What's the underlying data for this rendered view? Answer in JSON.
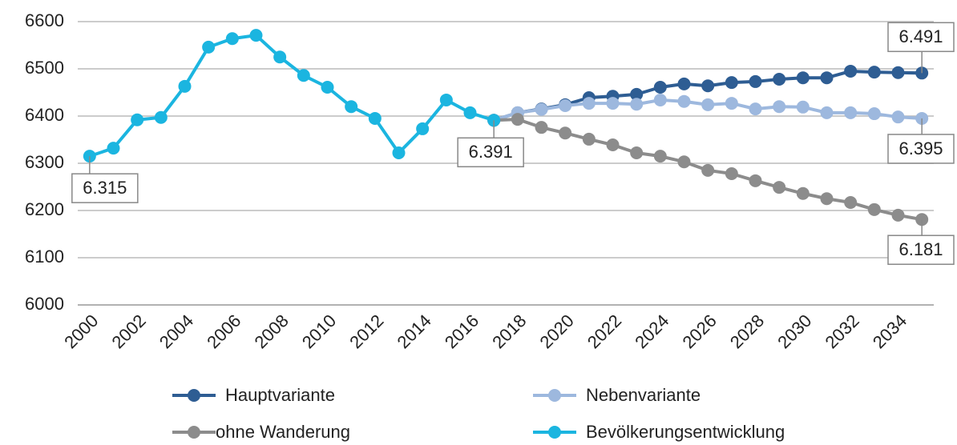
{
  "chart_data": {
    "type": "line",
    "categories": [
      "2000",
      null,
      "2002",
      null,
      "2004",
      null,
      "2006",
      null,
      "2008",
      null,
      "2010",
      null,
      "2012",
      null,
      "2014",
      null,
      "2016",
      null,
      "2018",
      null,
      "2020",
      null,
      "2022",
      null,
      "2024",
      null,
      "2026",
      null,
      "2028",
      null,
      "2030",
      null,
      "2032",
      null,
      "2034",
      null
    ],
    "ylim": [
      6000,
      6600
    ],
    "yticks": [
      6000,
      6100,
      6200,
      6300,
      6400,
      6500,
      6600
    ],
    "grid": true,
    "series": [
      {
        "name": "Hauptvariante",
        "color": "#2e5d93",
        "values": [
          null,
          null,
          null,
          null,
          null,
          null,
          null,
          null,
          null,
          null,
          null,
          null,
          null,
          null,
          null,
          null,
          null,
          6391,
          6407,
          6415,
          6424,
          6439,
          6442,
          6446,
          6461,
          6468,
          6464,
          6471,
          6473,
          6478,
          6481,
          6481,
          6495,
          6493,
          6492,
          6491
        ],
        "value_labels": [
          null,
          null,
          null,
          null,
          null,
          null,
          null,
          null,
          null,
          null,
          null,
          null,
          null,
          null,
          null,
          null,
          null,
          null,
          null,
          null,
          null,
          null,
          null,
          null,
          null,
          null,
          null,
          null,
          null,
          null,
          null,
          null,
          null,
          null,
          null,
          "6.491"
        ]
      },
      {
        "name": "Nebenvariante",
        "color": "#9db8de",
        "values": [
          null,
          null,
          null,
          null,
          null,
          null,
          null,
          null,
          null,
          null,
          null,
          null,
          null,
          null,
          null,
          null,
          null,
          6391,
          6407,
          6414,
          6422,
          6427,
          6427,
          6425,
          6434,
          6431,
          6424,
          6427,
          6415,
          6420,
          6419,
          6407,
          6407,
          6405,
          6398,
          6395
        ],
        "value_labels": [
          null,
          null,
          null,
          null,
          null,
          null,
          null,
          null,
          null,
          null,
          null,
          null,
          null,
          null,
          null,
          null,
          null,
          null,
          null,
          null,
          null,
          null,
          null,
          null,
          null,
          null,
          null,
          null,
          null,
          null,
          null,
          null,
          null,
          null,
          null,
          "6.395"
        ]
      },
      {
        "name": "ohne Wanderung",
        "color": "#8c8c8c",
        "values": [
          null,
          null,
          null,
          null,
          null,
          null,
          null,
          null,
          null,
          null,
          null,
          null,
          null,
          null,
          null,
          null,
          null,
          6391,
          6393,
          6376,
          6364,
          6351,
          6339,
          6322,
          6315,
          6303,
          6285,
          6278,
          6263,
          6249,
          6236,
          6225,
          6217,
          6202,
          6190,
          6181
        ],
        "value_labels": [
          null,
          null,
          null,
          null,
          null,
          null,
          null,
          null,
          null,
          null,
          null,
          null,
          null,
          null,
          null,
          null,
          null,
          null,
          null,
          null,
          null,
          null,
          null,
          null,
          null,
          null,
          null,
          null,
          null,
          null,
          null,
          null,
          null,
          null,
          null,
          "6.181"
        ]
      },
      {
        "name": "Bevölkerungsentwicklung",
        "color": "#1bb5e0",
        "values": [
          6315,
          6332,
          6392,
          6397,
          6463,
          6546,
          6564,
          6571,
          6525,
          6486,
          6461,
          6420,
          6395,
          6322,
          6373,
          6434,
          6407,
          6391,
          null,
          null,
          null,
          null,
          null,
          null,
          null,
          null,
          null,
          null,
          null,
          null,
          null,
          null,
          null,
          null,
          null,
          null
        ],
        "value_labels": [
          "6.315",
          null,
          null,
          null,
          null,
          null,
          null,
          null,
          null,
          null,
          null,
          null,
          null,
          null,
          null,
          null,
          null,
          "6.391",
          null,
          null,
          null,
          null,
          null,
          null,
          null,
          null,
          null,
          null,
          null,
          null,
          null,
          null,
          null,
          null,
          null,
          null
        ]
      }
    ]
  }
}
